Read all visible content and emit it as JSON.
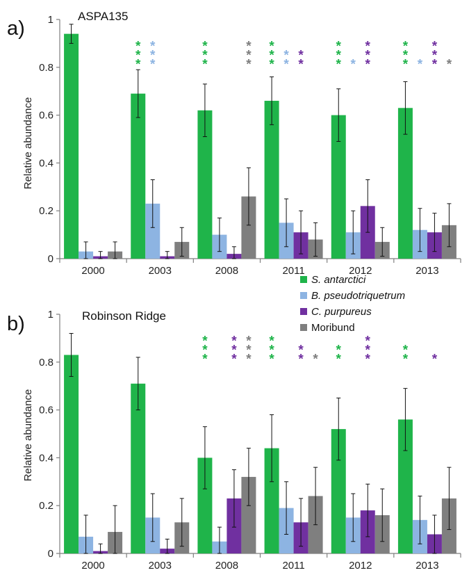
{
  "colors": {
    "S. antarctici": "#1fb44a",
    "B. pseudotriquetrum": "#8db4e2",
    "C. purpureus": "#7030a0",
    "Moribund": "#7f7f7f"
  },
  "legend": [
    {
      "label": "S. antarctici",
      "italic": true
    },
    {
      "label": "B. pseudotriquetrum",
      "italic": true
    },
    {
      "label": "C. purpureus",
      "italic": true
    },
    {
      "label": "Moribund",
      "italic": false
    }
  ],
  "chart_data": [
    {
      "type": "bar",
      "panel_letter": "a)",
      "title": "ASPA135",
      "ylabel": "Relative abundance",
      "ylim": [
        0,
        1
      ],
      "yticks": [
        "0",
        "0.2",
        "0.4",
        "0.6",
        "0.8",
        "1"
      ],
      "categories": [
        "2000",
        "2003",
        "2008",
        "2011",
        "2012",
        "2013"
      ],
      "series": [
        {
          "name": "S. antarctici",
          "values": [
            0.94,
            0.69,
            0.62,
            0.66,
            0.6,
            0.63
          ],
          "errors": [
            0.04,
            0.1,
            0.11,
            0.1,
            0.11,
            0.11
          ]
        },
        {
          "name": "B. pseudotriquetrum",
          "values": [
            0.03,
            0.23,
            0.1,
            0.15,
            0.11,
            0.12
          ],
          "errors": [
            0.04,
            0.1,
            0.07,
            0.1,
            0.09,
            0.09
          ]
        },
        {
          "name": "C. purpureus",
          "values": [
            0.01,
            0.01,
            0.02,
            0.11,
            0.22,
            0.11
          ],
          "errors": [
            0.02,
            0.02,
            0.03,
            0.09,
            0.11,
            0.08
          ]
        },
        {
          "name": "Moribund",
          "values": [
            0.03,
            0.07,
            0.26,
            0.08,
            0.07,
            0.14
          ],
          "errors": [
            0.04,
            0.06,
            0.12,
            0.07,
            0.06,
            0.09
          ]
        }
      ],
      "significance": [
        {
          "category": "2003",
          "series": "S. antarctici",
          "stars": 3
        },
        {
          "category": "2003",
          "series": "B. pseudotriquetrum",
          "stars": 3
        },
        {
          "category": "2008",
          "series": "S. antarctici",
          "stars": 3
        },
        {
          "category": "2008",
          "series": "Moribund",
          "stars": 3
        },
        {
          "category": "2011",
          "series": "S. antarctici",
          "stars": 3
        },
        {
          "category": "2011",
          "series": "B. pseudotriquetrum",
          "stars": 2
        },
        {
          "category": "2011",
          "series": "C. purpureus",
          "stars": 2
        },
        {
          "category": "2012",
          "series": "S. antarctici",
          "stars": 3
        },
        {
          "category": "2012",
          "series": "B. pseudotriquetrum",
          "stars": 1
        },
        {
          "category": "2012",
          "series": "C. purpureus",
          "stars": 3
        },
        {
          "category": "2013",
          "series": "S. antarctici",
          "stars": 3
        },
        {
          "category": "2013",
          "series": "B. pseudotriquetrum",
          "stars": 1
        },
        {
          "category": "2013",
          "series": "C. purpureus",
          "stars": 3
        },
        {
          "category": "2013",
          "series": "Moribund",
          "stars": 1
        }
      ]
    },
    {
      "type": "bar",
      "panel_letter": "b)",
      "title": "Robinson Ridge",
      "ylabel": "Relative abundance",
      "ylim": [
        0,
        1
      ],
      "yticks": [
        "0",
        "0.2",
        "0.4",
        "0.6",
        "0.8",
        "1"
      ],
      "categories": [
        "2000",
        "2003",
        "2008",
        "2011",
        "2012",
        "2013"
      ],
      "series": [
        {
          "name": "S. antarctici",
          "values": [
            0.83,
            0.71,
            0.4,
            0.44,
            0.52,
            0.56
          ],
          "errors": [
            0.09,
            0.11,
            0.13,
            0.14,
            0.13,
            0.13
          ]
        },
        {
          "name": "B. pseudotriquetrum",
          "values": [
            0.07,
            0.15,
            0.05,
            0.19,
            0.15,
            0.14
          ],
          "errors": [
            0.09,
            0.1,
            0.06,
            0.11,
            0.1,
            0.1
          ]
        },
        {
          "name": "C. purpureus",
          "values": [
            0.01,
            0.02,
            0.23,
            0.13,
            0.18,
            0.08
          ],
          "errors": [
            0.03,
            0.04,
            0.12,
            0.1,
            0.11,
            0.08
          ]
        },
        {
          "name": "Moribund",
          "values": [
            0.09,
            0.13,
            0.32,
            0.24,
            0.16,
            0.23
          ],
          "errors": [
            0.11,
            0.1,
            0.12,
            0.12,
            0.11,
            0.13
          ]
        }
      ],
      "significance": [
        {
          "category": "2008",
          "series": "S. antarctici",
          "stars": 3
        },
        {
          "category": "2008",
          "series": "C. purpureus",
          "stars": 3
        },
        {
          "category": "2008",
          "series": "Moribund",
          "stars": 3
        },
        {
          "category": "2011",
          "series": "S. antarctici",
          "stars": 3
        },
        {
          "category": "2011",
          "series": "C. purpureus",
          "stars": 2
        },
        {
          "category": "2011",
          "series": "Moribund",
          "stars": 1
        },
        {
          "category": "2012",
          "series": "S. antarctici",
          "stars": 2
        },
        {
          "category": "2012",
          "series": "C. purpureus",
          "stars": 3
        },
        {
          "category": "2013",
          "series": "S. antarctici",
          "stars": 2
        },
        {
          "category": "2013",
          "series": "C. purpureus",
          "stars": 1
        }
      ]
    }
  ]
}
